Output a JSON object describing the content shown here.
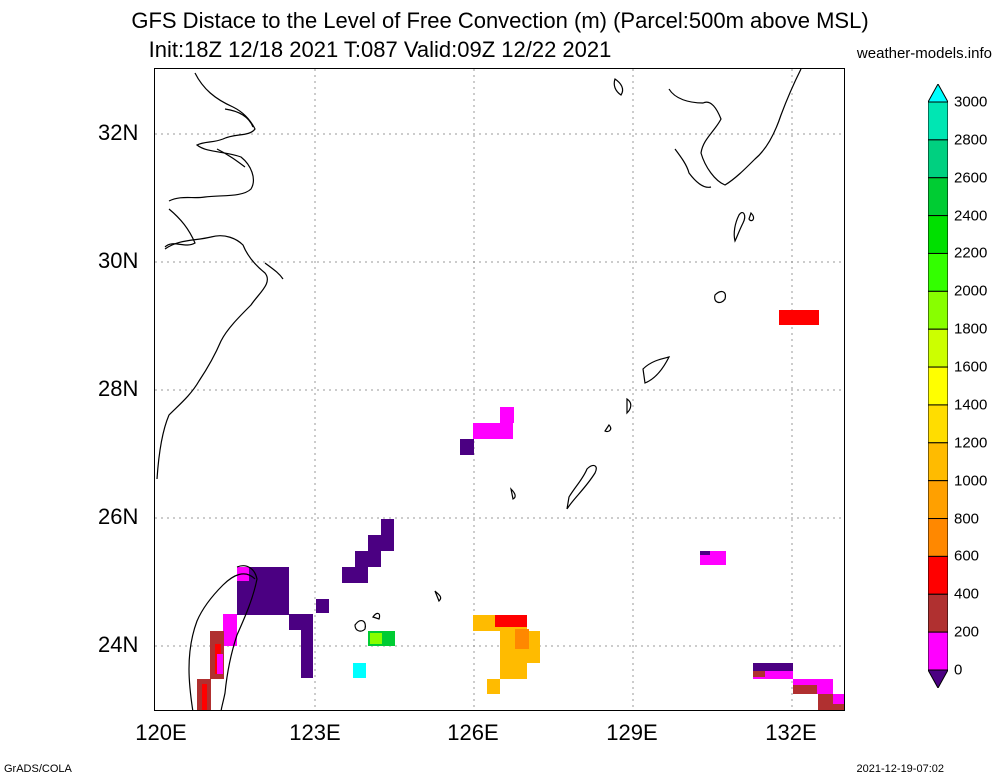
{
  "header": {
    "title_line1": "GFS Distace to the Level of Free Convection (m) (Parcel:500m above MSL)",
    "title_line2": "Init:18Z 12/18 2021 T:087 Valid:09Z 12/22 2021",
    "credit": "weather-models.info"
  },
  "axes": {
    "lon_labels": [
      "120E",
      "123E",
      "126E",
      "129E",
      "132E"
    ],
    "lat_labels": [
      "32N",
      "30N",
      "28N",
      "26N",
      "24N"
    ]
  },
  "colorbar": {
    "labels": [
      "3000",
      "2800",
      "2600",
      "2400",
      "2200",
      "2000",
      "1800",
      "1600",
      "1400",
      "1200",
      "1000",
      "800",
      "600",
      "400",
      "200",
      "0"
    ],
    "colors": [
      "#00ffff",
      "#00e6b3",
      "#00d080",
      "#00cc33",
      "#00e000",
      "#33ff00",
      "#88ff00",
      "#ccff00",
      "#ffff00",
      "#ffdd00",
      "#ffbb00",
      "#ffa000",
      "#ff8800",
      "#ff0000",
      "#b03030",
      "#ff00ff",
      "#4b0082"
    ]
  },
  "footer": {
    "left": "GrADS/COLA",
    "right": "2021-12-19-07:02"
  }
}
